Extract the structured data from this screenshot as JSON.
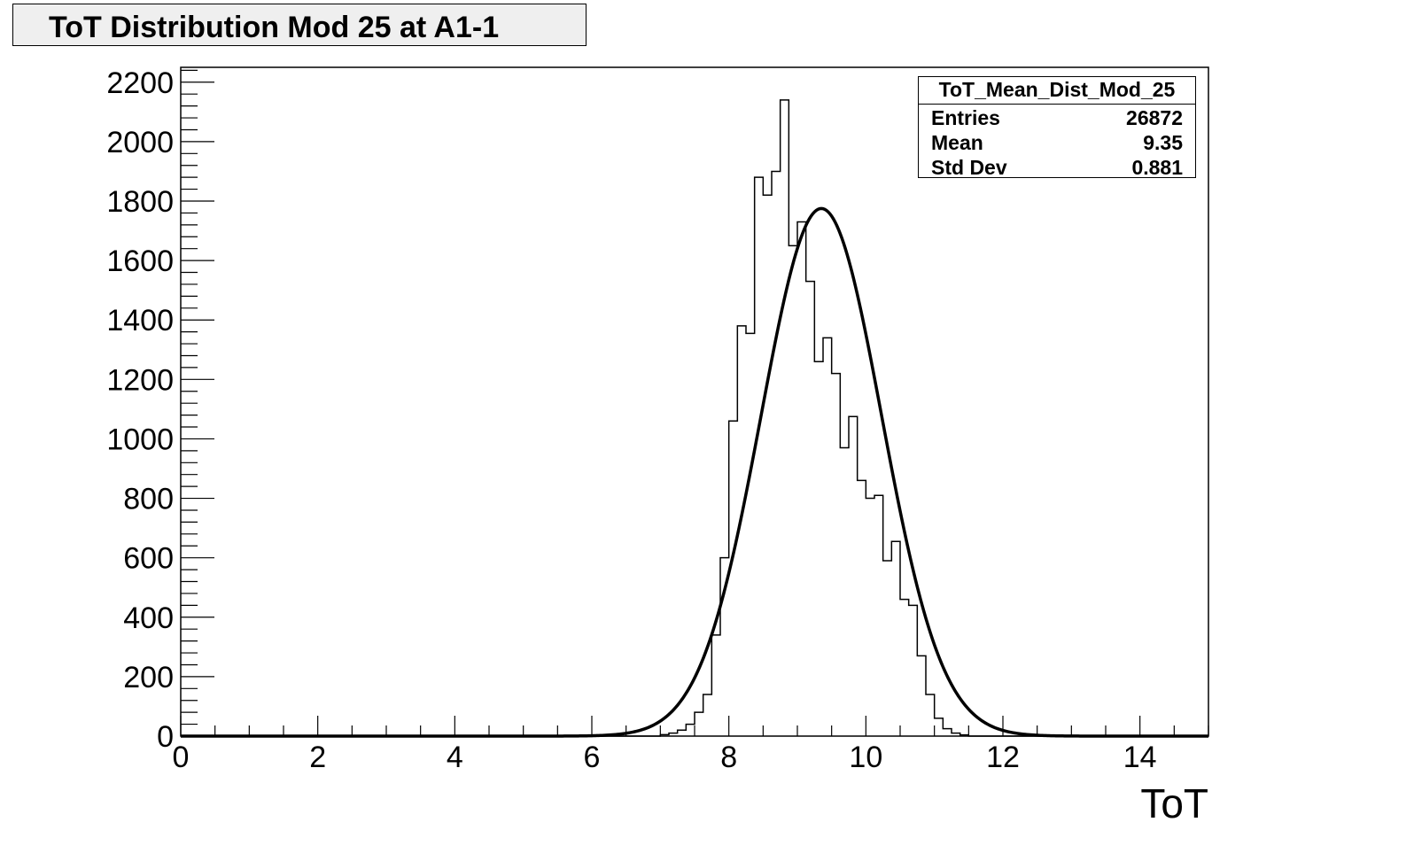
{
  "title": "ToT Distribution Mod 25 at A1-1",
  "stats": {
    "name": "ToT_Mean_Dist_Mod_25",
    "rows": [
      {
        "label": "Entries",
        "value": "26872"
      },
      {
        "label": "Mean",
        "value": "9.35"
      },
      {
        "label": "Std Dev",
        "value": "0.881"
      }
    ]
  },
  "chart_data": {
    "type": "bar",
    "title": "ToT Distribution Mod 25 at A1-1",
    "xlabel": "ToT",
    "ylabel": "",
    "xlim": [
      0,
      15
    ],
    "ylim": [
      0,
      2250
    ],
    "xticks": [
      0,
      2,
      4,
      6,
      8,
      10,
      12,
      14
    ],
    "yticks": [
      0,
      200,
      400,
      600,
      800,
      1000,
      1200,
      1400,
      1600,
      1800,
      2000,
      2200
    ],
    "grid": false,
    "histogram": {
      "bin_width": 0.125,
      "bins": [
        {
          "x": 7.0,
          "y": 5
        },
        {
          "x": 7.125,
          "y": 10
        },
        {
          "x": 7.25,
          "y": 20
        },
        {
          "x": 7.375,
          "y": 40
        },
        {
          "x": 7.5,
          "y": 80
        },
        {
          "x": 7.625,
          "y": 140
        },
        {
          "x": 7.75,
          "y": 340
        },
        {
          "x": 7.875,
          "y": 600
        },
        {
          "x": 8.0,
          "y": 1060
        },
        {
          "x": 8.125,
          "y": 1380
        },
        {
          "x": 8.25,
          "y": 1355
        },
        {
          "x": 8.375,
          "y": 1880
        },
        {
          "x": 8.5,
          "y": 1820
        },
        {
          "x": 8.625,
          "y": 1900
        },
        {
          "x": 8.75,
          "y": 2140
        },
        {
          "x": 8.875,
          "y": 1650
        },
        {
          "x": 9.0,
          "y": 1730
        },
        {
          "x": 9.125,
          "y": 1530
        },
        {
          "x": 9.25,
          "y": 1260
        },
        {
          "x": 9.375,
          "y": 1340
        },
        {
          "x": 9.5,
          "y": 1220
        },
        {
          "x": 9.625,
          "y": 970
        },
        {
          "x": 9.75,
          "y": 1075
        },
        {
          "x": 9.875,
          "y": 860
        },
        {
          "x": 10.0,
          "y": 800
        },
        {
          "x": 10.125,
          "y": 810
        },
        {
          "x": 10.25,
          "y": 590
        },
        {
          "x": 10.375,
          "y": 655
        },
        {
          "x": 10.5,
          "y": 460
        },
        {
          "x": 10.625,
          "y": 440
        },
        {
          "x": 10.75,
          "y": 270
        },
        {
          "x": 10.875,
          "y": 140
        },
        {
          "x": 11.0,
          "y": 60
        },
        {
          "x": 11.125,
          "y": 25
        },
        {
          "x": 11.25,
          "y": 10
        },
        {
          "x": 11.375,
          "y": 4
        }
      ]
    },
    "fit": {
      "type": "gaussian",
      "mean": 9.35,
      "sigma": 0.881,
      "amplitude": 1775,
      "range": [
        0,
        15
      ]
    }
  }
}
